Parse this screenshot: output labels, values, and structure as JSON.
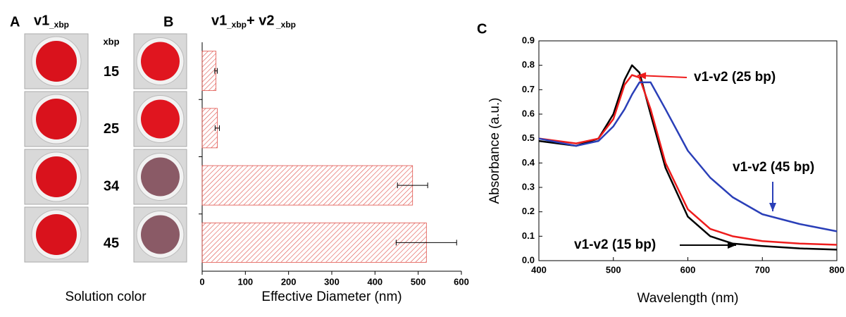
{
  "panel_a": {
    "label": "A",
    "title": [
      "v1",
      "_xbp"
    ],
    "caption": "Solution color"
  },
  "chart_data": [
    {
      "type": "bar",
      "orientation": "horizontal",
      "panel_label": "B",
      "title": [
        "v1",
        "_xbp",
        "+ v2",
        "_xbp"
      ],
      "category_header": "xbp",
      "categories": [
        "15",
        "25",
        "34",
        "45"
      ],
      "values": [
        32,
        35,
        487,
        519
      ],
      "errors": [
        3,
        5,
        35,
        70
      ],
      "color": "#e0504a",
      "xlabel": "Effective Diameter (nm)",
      "xlim": [
        0,
        600
      ],
      "xticks": [
        0,
        100,
        200,
        300,
        400,
        500,
        600
      ]
    },
    {
      "type": "line",
      "panel_label": "C",
      "xlabel": "Wavelength (nm)",
      "ylabel": "Absorbance (a.u.)",
      "xlim": [
        400,
        800
      ],
      "xticks": [
        400,
        500,
        600,
        700,
        800
      ],
      "ylim": [
        0,
        0.9
      ],
      "yticks": [
        {
          "value": 0,
          "label": "0.0"
        },
        0.1,
        0.2,
        0.3,
        0.4,
        0.5,
        0.6,
        0.7,
        0.8,
        0.9
      ],
      "x": [
        400,
        450,
        480,
        500,
        515,
        525,
        535,
        550,
        570,
        600,
        630,
        660,
        700,
        750,
        800
      ],
      "series": [
        {
          "name": "v1-v2 (15 bp)",
          "color": "#000000",
          "values": [
            0.49,
            0.47,
            0.5,
            0.6,
            0.74,
            0.8,
            0.77,
            0.6,
            0.38,
            0.18,
            0.1,
            0.07,
            0.06,
            0.05,
            0.045
          ]
        },
        {
          "name": "v1-v2 (25 bp)",
          "color": "#ee1c1c",
          "values": [
            0.5,
            0.48,
            0.5,
            0.58,
            0.72,
            0.76,
            0.75,
            0.62,
            0.4,
            0.21,
            0.13,
            0.1,
            0.08,
            0.07,
            0.065
          ]
        },
        {
          "name": "v1-v2 (45 bp)",
          "color": "#2a3fb8",
          "values": [
            0.5,
            0.47,
            0.49,
            0.55,
            0.62,
            0.68,
            0.73,
            0.73,
            0.62,
            0.45,
            0.34,
            0.26,
            0.19,
            0.15,
            0.12
          ]
        }
      ]
    }
  ]
}
